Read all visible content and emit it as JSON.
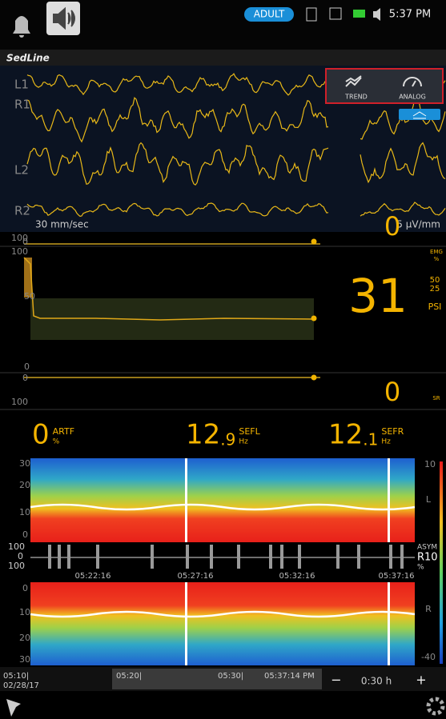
{
  "status_bar": {
    "mode": "ADULT",
    "time": "5:37 PM"
  },
  "module": {
    "title": "SedLine"
  },
  "eeg": {
    "channels": [
      "L1",
      "R1",
      "L2",
      "R2"
    ],
    "speed": "30 mm/sec",
    "gain": "5 μV/mm",
    "buttons": [
      "TREND",
      "ANALOG"
    ]
  },
  "emg": {
    "axis": [
      "100",
      "0"
    ],
    "value": "0",
    "label": "EMG",
    "unit": "%"
  },
  "psi": {
    "axis": [
      "100",
      "50",
      "0"
    ],
    "value": "31",
    "limits": [
      "50",
      "25"
    ],
    "label": "PSI"
  },
  "sr": {
    "axis": [
      "0",
      "100"
    ],
    "value": "0",
    "label": "SR"
  },
  "params": [
    {
      "whole": "0",
      "fraction": "",
      "label": "ARTF",
      "unit": "%"
    },
    {
      "whole": "12",
      "fraction": ".9",
      "label": "SEFL",
      "unit": "Hz"
    },
    {
      "whole": "12",
      "fraction": ".1",
      "label": "SEFR",
      "unit": "Hz"
    }
  ],
  "dsa_left": {
    "axis": [
      "30",
      "20",
      "10",
      "0"
    ],
    "scale_top": "10",
    "side": "L",
    "scale_bottom": "-40"
  },
  "asym": {
    "axis": [
      "100",
      "0",
      "100"
    ],
    "times": [
      "05:22:16",
      "05:27:16",
      "05:32:16",
      "05:37:16"
    ],
    "label": "ASYM",
    "channel": "R10",
    "unit": "%"
  },
  "dsa_right": {
    "axis": [
      "0",
      "10",
      "20",
      "30"
    ],
    "side": "R"
  },
  "timeline": {
    "start": "05:10|",
    "date": "02/28/17",
    "marks": [
      "05:20|",
      "05:30|"
    ],
    "current": "05:37:14 PM",
    "minus": "−",
    "span": "0:30 h",
    "plus": "+"
  }
}
